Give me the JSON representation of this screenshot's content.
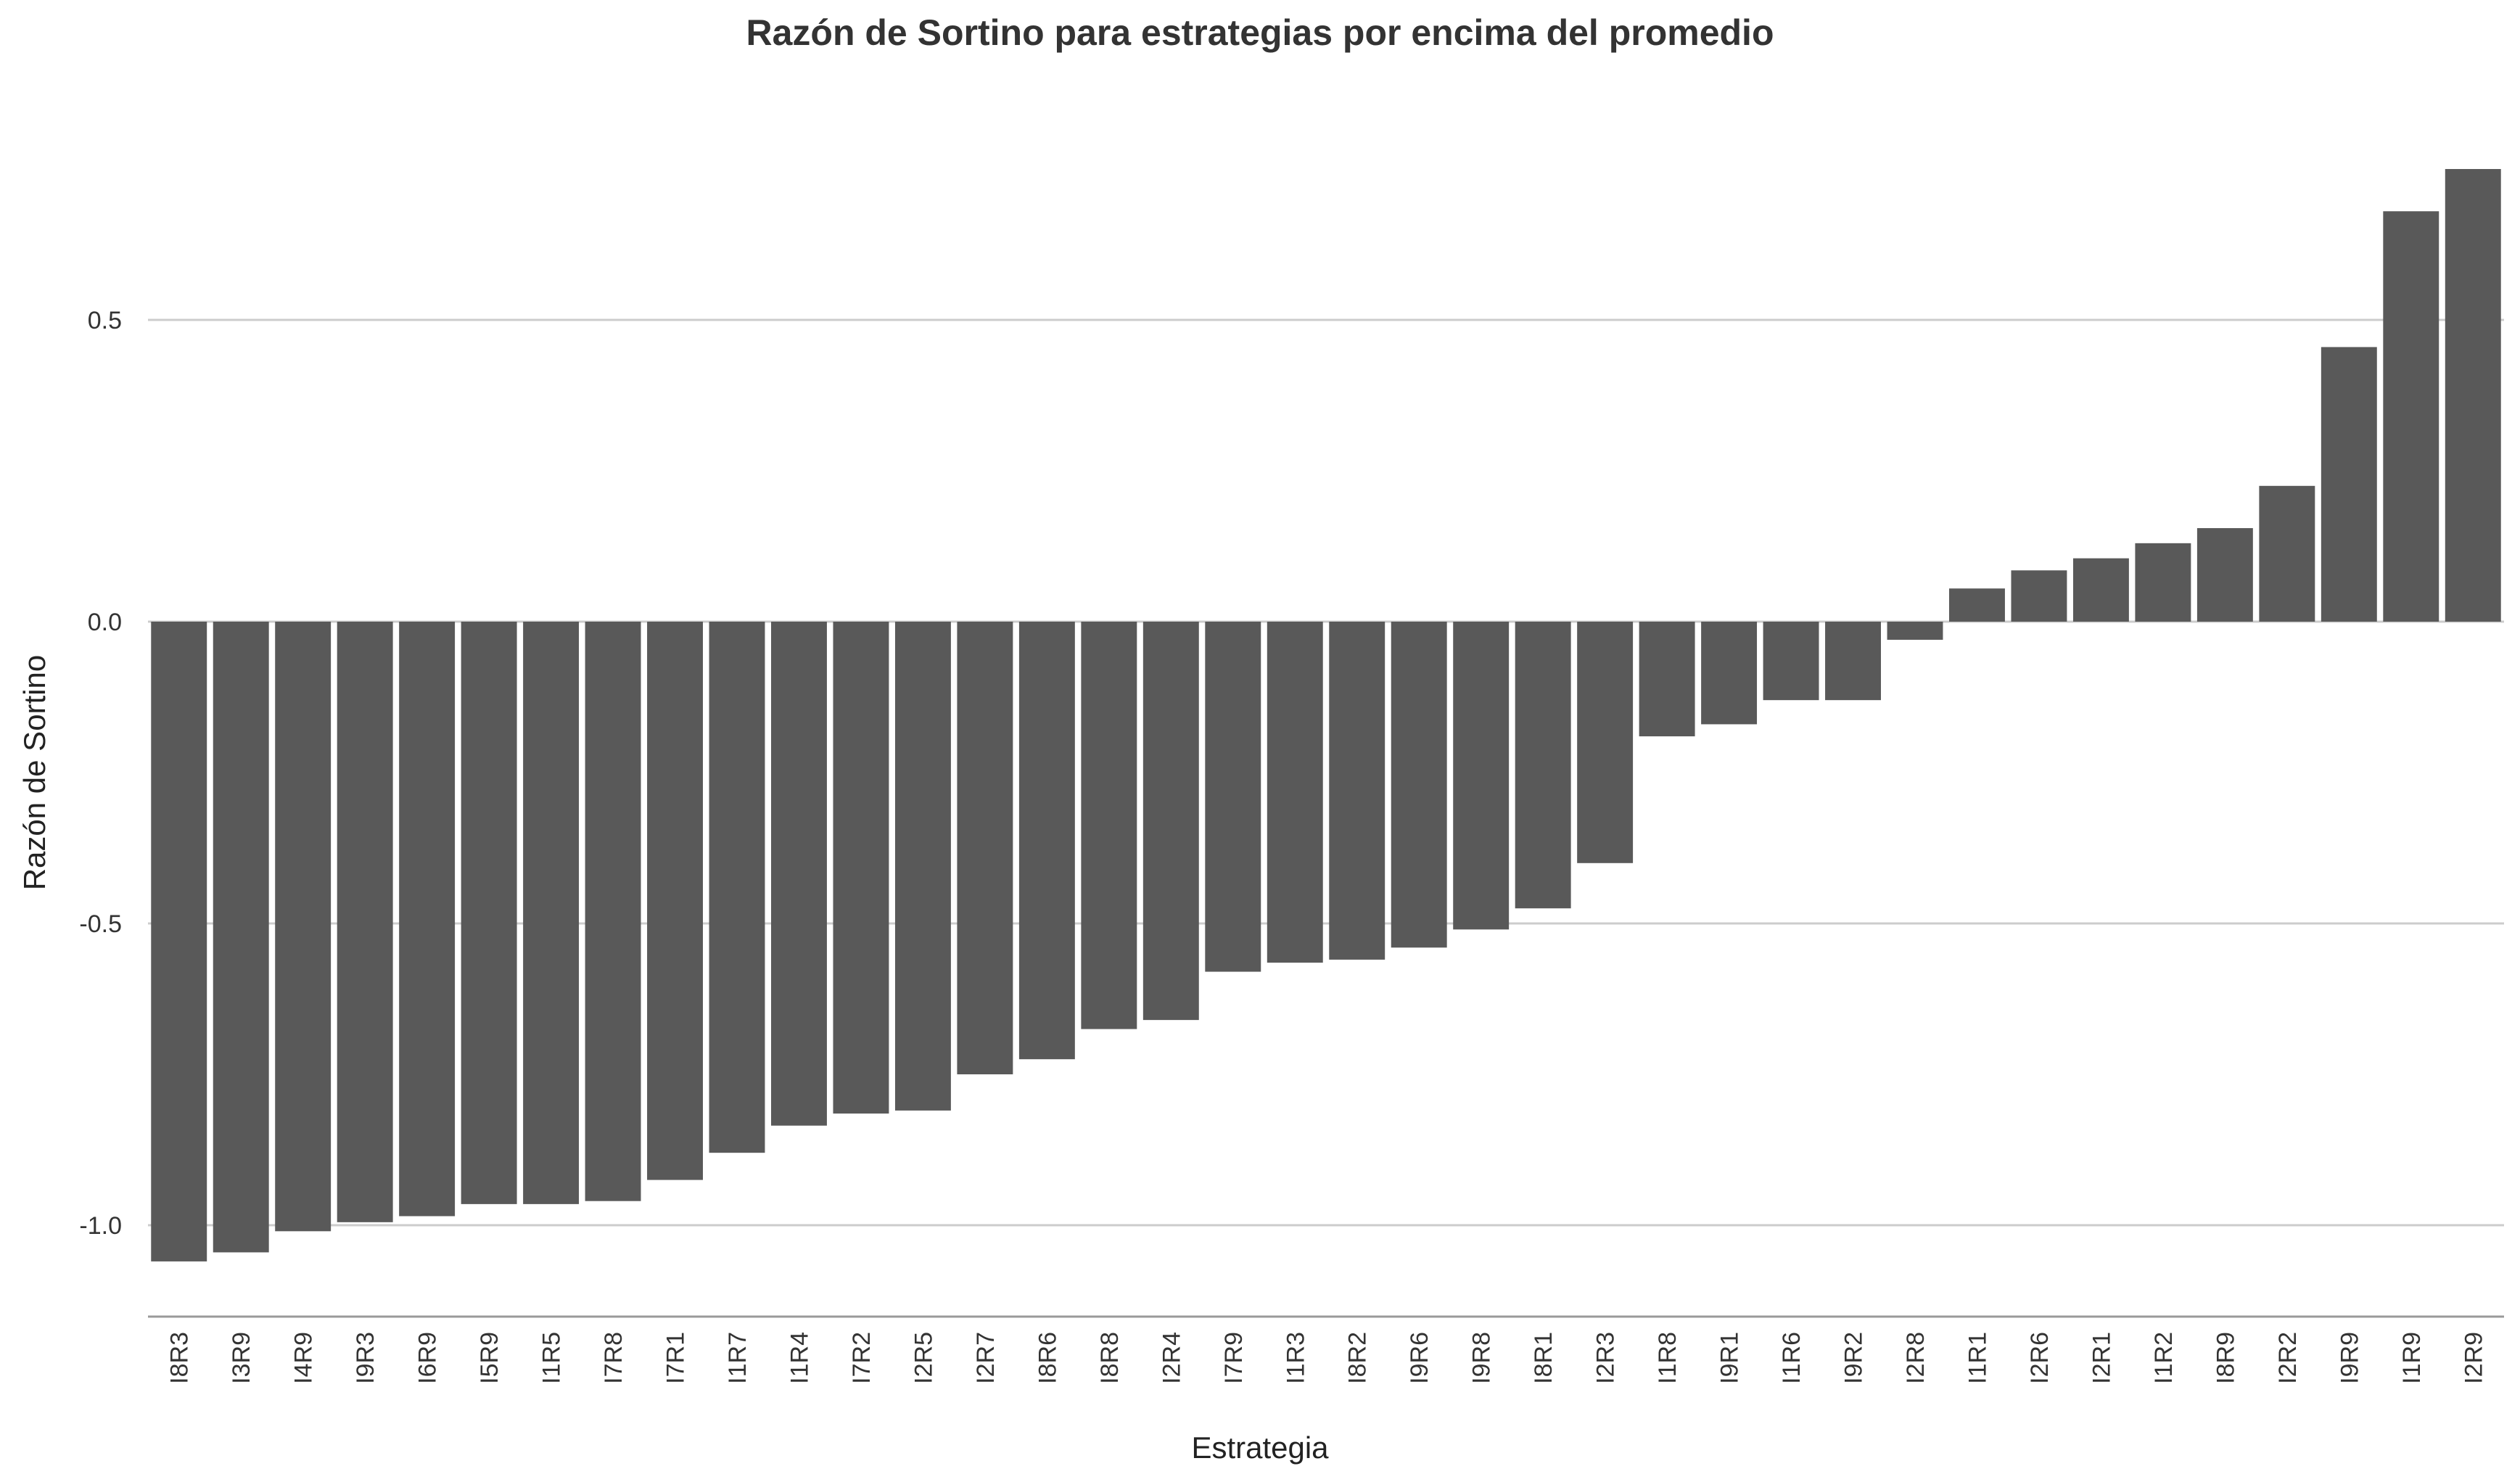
{
  "chart_data": {
    "type": "bar",
    "title": "Razón de Sortino para estrategias por encima del promedio",
    "xlabel": "Estrategia",
    "ylabel": "Razón de Sortino",
    "categories": [
      "I8R3",
      "I3R9",
      "I4R9",
      "I9R3",
      "I6R9",
      "I5R9",
      "I1R5",
      "I7R8",
      "I7R1",
      "I1R7",
      "I1R4",
      "I7R2",
      "I2R5",
      "I2R7",
      "I8R6",
      "I8R8",
      "I2R4",
      "I7R9",
      "I1R3",
      "I8R2",
      "I9R6",
      "I9R8",
      "I8R1",
      "I2R3",
      "I1R8",
      "I9R1",
      "I1R6",
      "I9R2",
      "I2R8",
      "I1R1",
      "I2R6",
      "I2R1",
      "I1R2",
      "I8R9",
      "I2R2",
      "I9R9",
      "I1R9",
      "I2R9"
    ],
    "values": [
      -1.06,
      -1.045,
      -1.01,
      -0.995,
      -0.985,
      -0.965,
      -0.965,
      -0.96,
      -0.925,
      -0.88,
      -0.835,
      -0.815,
      -0.81,
      -0.75,
      -0.725,
      -0.675,
      -0.66,
      -0.58,
      -0.565,
      -0.56,
      -0.54,
      -0.51,
      -0.475,
      -0.4,
      -0.19,
      -0.17,
      -0.13,
      -0.13,
      -0.03,
      0.055,
      0.085,
      0.105,
      0.13,
      0.155,
      0.225,
      0.455,
      0.68,
      0.75
    ],
    "ylim": [
      -1.15,
      0.85
    ],
    "yticks": [
      0.5,
      0.0,
      -0.5,
      -1.0
    ],
    "ytick_labels": [
      "0.5",
      "0.0",
      "-0.5",
      "-1.0"
    ],
    "grid": "horizontal",
    "bar_color": "#595959",
    "grid_color": "#cccccc"
  }
}
